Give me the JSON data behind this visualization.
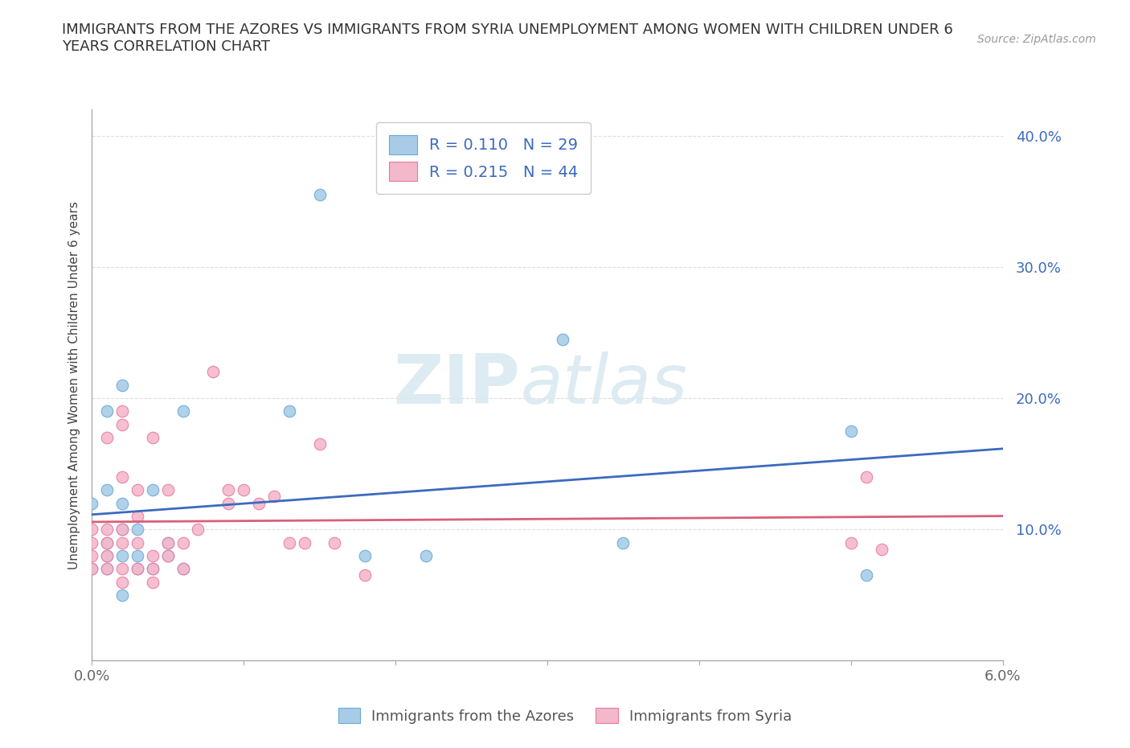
{
  "title": "IMMIGRANTS FROM THE AZORES VS IMMIGRANTS FROM SYRIA UNEMPLOYMENT AMONG WOMEN WITH CHILDREN UNDER 6\nYEARS CORRELATION CHART",
  "source": "Source: ZipAtlas.com",
  "ylabel": "Unemployment Among Women with Children Under 6 years",
  "xlim": [
    0.0,
    0.06
  ],
  "ylim": [
    0.0,
    0.42
  ],
  "x_ticks": [
    0.0,
    0.01,
    0.02,
    0.03,
    0.04,
    0.05,
    0.06
  ],
  "y_ticks": [
    0.1,
    0.2,
    0.3,
    0.4
  ],
  "y_tick_labels": [
    "10.0%",
    "20.0%",
    "30.0%",
    "40.0%"
  ],
  "x_tick_labels": [
    "0.0%",
    "",
    "",
    "",
    "",
    "",
    "6.0%"
  ],
  "background_color": "#ffffff",
  "grid_color": "#dddddd",
  "azores_color": "#a8cce8",
  "azores_edge_color": "#6aaad4",
  "syria_color": "#f4b8cb",
  "syria_edge_color": "#e87aa0",
  "azores_line_color": "#3c6abf",
  "syria_line_color": "#d9607a",
  "legend_azores_label": "R = 0.110   N = 29",
  "legend_syria_label": "R = 0.215   N = 44",
  "watermark_zip": "ZIP",
  "watermark_atlas": "atlas",
  "azores_scatter_x": [
    0.0,
    0.0,
    0.001,
    0.001,
    0.001,
    0.001,
    0.001,
    0.002,
    0.002,
    0.002,
    0.002,
    0.002,
    0.003,
    0.003,
    0.003,
    0.004,
    0.004,
    0.005,
    0.005,
    0.006,
    0.006,
    0.013,
    0.015,
    0.018,
    0.022,
    0.031,
    0.035,
    0.05,
    0.051
  ],
  "azores_scatter_y": [
    0.07,
    0.12,
    0.07,
    0.08,
    0.09,
    0.13,
    0.19,
    0.05,
    0.08,
    0.1,
    0.12,
    0.21,
    0.07,
    0.08,
    0.1,
    0.07,
    0.13,
    0.08,
    0.09,
    0.07,
    0.19,
    0.19,
    0.355,
    0.08,
    0.08,
    0.245,
    0.09,
    0.175,
    0.065
  ],
  "syria_scatter_x": [
    0.0,
    0.0,
    0.0,
    0.0,
    0.001,
    0.001,
    0.001,
    0.001,
    0.001,
    0.002,
    0.002,
    0.002,
    0.002,
    0.002,
    0.002,
    0.002,
    0.003,
    0.003,
    0.003,
    0.003,
    0.004,
    0.004,
    0.004,
    0.004,
    0.005,
    0.005,
    0.005,
    0.006,
    0.006,
    0.007,
    0.008,
    0.009,
    0.009,
    0.01,
    0.011,
    0.012,
    0.013,
    0.014,
    0.015,
    0.016,
    0.018,
    0.05,
    0.051,
    0.052
  ],
  "syria_scatter_y": [
    0.07,
    0.08,
    0.09,
    0.1,
    0.07,
    0.08,
    0.09,
    0.1,
    0.17,
    0.06,
    0.07,
    0.09,
    0.1,
    0.14,
    0.18,
    0.19,
    0.07,
    0.09,
    0.11,
    0.13,
    0.06,
    0.07,
    0.08,
    0.17,
    0.08,
    0.09,
    0.13,
    0.07,
    0.09,
    0.1,
    0.22,
    0.12,
    0.13,
    0.13,
    0.12,
    0.125,
    0.09,
    0.09,
    0.165,
    0.09,
    0.065,
    0.09,
    0.14,
    0.085
  ],
  "title_fontsize": 13,
  "source_fontsize": 10,
  "tick_fontsize": 13,
  "legend_fontsize": 14,
  "ylabel_fontsize": 11
}
